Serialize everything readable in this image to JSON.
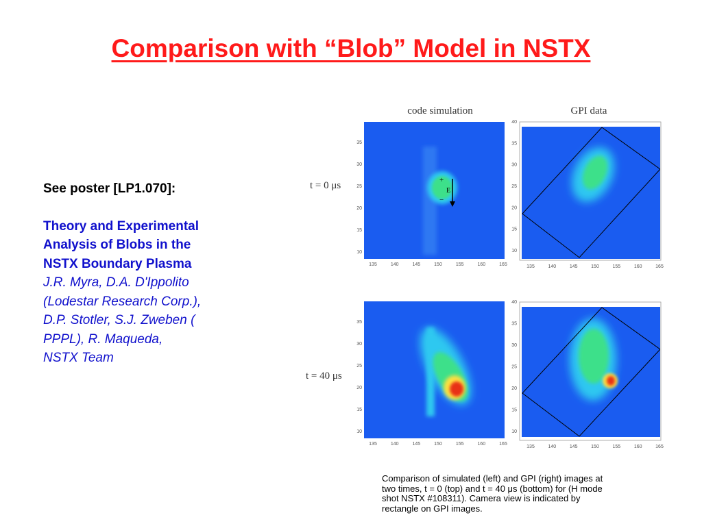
{
  "slide": {
    "title": "Comparison with “Blob” Model in NSTX",
    "see_poster": "See poster [LP1.070]:",
    "paper_title_lines": [
      "Theory and Experimental",
      "Analysis of Blobs in the",
      "NSTX Boundary Plasma"
    ],
    "author_lines": [
      "J.R. Myra, D.A. D'Ippolito",
      "(Lodestar Research Corp.),",
      "D.P. Stotler, S.J. Zweben (",
      "PPPL), R. Maqueda,",
      "NSTX Team"
    ]
  },
  "figure": {
    "col_headers": [
      "code simulation",
      "GPI data"
    ],
    "row_labels": [
      "t = 0 μs",
      "t = 40 μs"
    ],
    "x_ticks": [
      "135",
      "140",
      "145",
      "150",
      "155",
      "160",
      "165"
    ],
    "y_ticks_sim": [
      "35",
      "30",
      "25",
      "20",
      "15",
      "10"
    ],
    "y_ticks_gpi": [
      "40",
      "35",
      "30",
      "25",
      "20",
      "15",
      "10"
    ],
    "arrow_label": "E",
    "plus": "+",
    "minus": "−",
    "colors": {
      "field": "#1a5cf0",
      "ring": "#2ec8f0",
      "mid": "#3ee08a",
      "hot": "#ffe040",
      "core": "#e83018"
    }
  },
  "caption_lines": [
    "Comparison of simulated (left) and GPI (right) images at",
    "two times, t = 0 (top) and t = 40 μs (bottom) for  (H mode",
    "shot NSTX #108311).   Camera view is indicated by",
    "rectangle on GPI images."
  ]
}
